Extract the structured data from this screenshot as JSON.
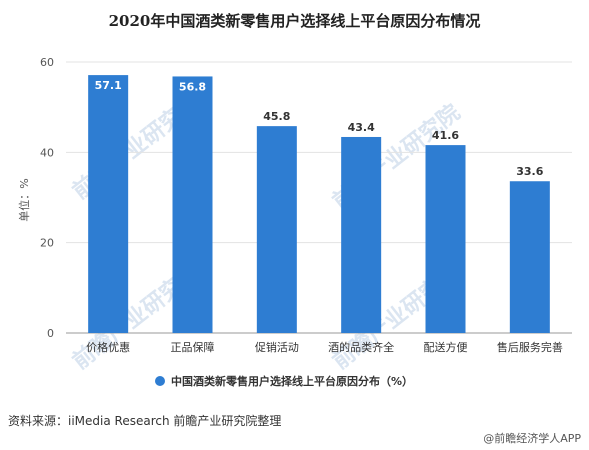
{
  "title": "2020年中国酒类新零售用户选择线上平台原因分布情况",
  "chart_data": {
    "type": "bar",
    "categories": [
      "价格优惠",
      "正品保障",
      "促销活动",
      "酒的品类齐全",
      "配送方便",
      "售后服务完善"
    ],
    "series": [
      {
        "name": "中国酒类新零售用户选择线上平台原因分布（%）",
        "values": [
          57.1,
          56.8,
          45.8,
          43.4,
          41.6,
          33.6
        ]
      }
    ],
    "data_labels": [
      "57.1",
      "56.8",
      "45.8",
      "43.4",
      "41.6",
      "33.6"
    ],
    "ylabel": "单位：%",
    "ylim": [
      0,
      60
    ],
    "yticks": [
      "0",
      "20",
      "40",
      "60"
    ],
    "grid": true,
    "legend_position": "bottom",
    "bar_color": "#2e7dd2"
  },
  "watermark": "前瞻产业研究院",
  "footer": {
    "source": "资料来源：iiMedia Research 前瞻产业研究院整理",
    "brand": "@前瞻经济学人APP"
  }
}
